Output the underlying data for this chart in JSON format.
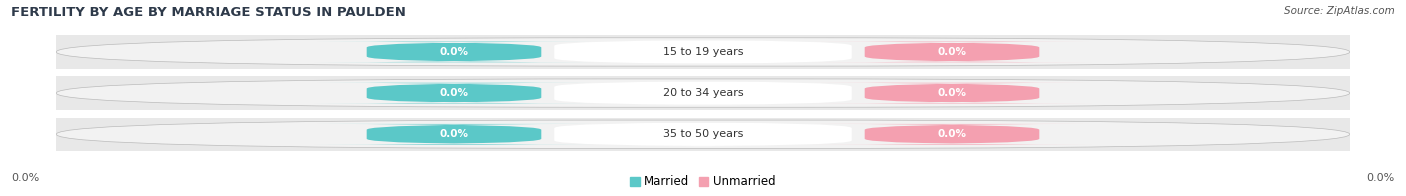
{
  "title": "FERTILITY BY AGE BY MARRIAGE STATUS IN PAULDEN",
  "source": "Source: ZipAtlas.com",
  "categories": [
    "15 to 19 years",
    "20 to 34 years",
    "35 to 50 years"
  ],
  "married_values": [
    0.0,
    0.0,
    0.0
  ],
  "unmarried_values": [
    0.0,
    0.0,
    0.0
  ],
  "married_color": "#5BC8C8",
  "unmarried_color": "#F4A0B0",
  "bar_bg_color": "#E8E8E8",
  "bar_border_color": "#CCCCCC",
  "title_fontsize": 9.5,
  "source_fontsize": 7.5,
  "label_fontsize": 8,
  "tick_label_fontsize": 8,
  "legend_fontsize": 8.5,
  "xlim": [
    -1.0,
    1.0
  ],
  "background_color": "#FFFFFF",
  "left_tick_label": "0.0%",
  "right_tick_label": "0.0%"
}
